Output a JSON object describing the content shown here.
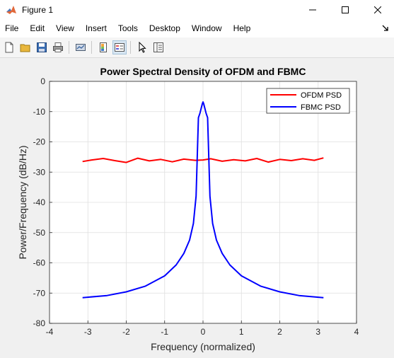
{
  "window": {
    "title": "Figure 1"
  },
  "menu": [
    "File",
    "Edit",
    "View",
    "Insert",
    "Tools",
    "Desktop",
    "Window",
    "Help"
  ],
  "toolbar": [
    {
      "icon": "new-figure-icon"
    },
    {
      "icon": "open-file-icon"
    },
    {
      "icon": "save-icon"
    },
    {
      "icon": "print-icon"
    },
    {
      "icon": "link-plot-icon"
    },
    {
      "icon": "colorbar-icon"
    },
    {
      "icon": "legend-icon"
    },
    {
      "icon": "edit-plot-pointer-icon"
    },
    {
      "icon": "property-inspector-icon"
    }
  ],
  "chart_data": {
    "type": "line",
    "title": "Power Spectral Density of OFDM and FBMC",
    "xlabel": "Frequency (normalized)",
    "ylabel": "Power/Frequency (dB/Hz)",
    "xlim": [
      -4,
      4
    ],
    "ylim": [
      -80,
      0
    ],
    "xticks": [
      "-4",
      "-3",
      "-2",
      "-1",
      "0",
      "1",
      "2",
      "3",
      "4"
    ],
    "yticks": [
      "0",
      "-10",
      "-20",
      "-30",
      "-40",
      "-50",
      "-60",
      "-70",
      "-80"
    ],
    "grid": true,
    "legend_position": "top-right",
    "series": [
      {
        "name": "OFDM PSD",
        "color": "#ff0000",
        "x": [
          -3.14,
          -2.9,
          -2.6,
          -2.3,
          -2.0,
          -1.7,
          -1.4,
          -1.1,
          -0.8,
          -0.5,
          -0.2,
          0.0,
          0.2,
          0.5,
          0.8,
          1.1,
          1.4,
          1.7,
          2.0,
          2.3,
          2.6,
          2.9,
          3.14
        ],
        "y": [
          -26.5,
          -26.0,
          -25.5,
          -26.2,
          -26.8,
          -25.4,
          -26.3,
          -25.8,
          -26.6,
          -25.7,
          -26.1,
          -26.0,
          -25.6,
          -26.4,
          -25.9,
          -26.3,
          -25.5,
          -26.7,
          -25.8,
          -26.2,
          -25.6,
          -26.1,
          -25.3
        ]
      },
      {
        "name": "FBMC PSD",
        "color": "#0000ff",
        "x": [
          -3.14,
          -2.5,
          -2.0,
          -1.5,
          -1.0,
          -0.7,
          -0.5,
          -0.35,
          -0.25,
          -0.18,
          -0.12,
          -0.08,
          -0.05,
          -0.02,
          0.0,
          0.02,
          0.05,
          0.08,
          0.12,
          0.18,
          0.25,
          0.35,
          0.5,
          0.7,
          1.0,
          1.5,
          2.0,
          2.5,
          3.14
        ],
        "y": [
          -71.5,
          -70.8,
          -69.6,
          -67.7,
          -64.3,
          -60.7,
          -56.9,
          -52.5,
          -47.0,
          -38.0,
          -12.0,
          -10.5,
          -9.0,
          -7.5,
          -6.8,
          -7.5,
          -9.0,
          -10.5,
          -12.0,
          -38.0,
          -47.0,
          -52.5,
          -56.9,
          -60.7,
          -64.3,
          -67.7,
          -69.6,
          -70.8,
          -71.5
        ]
      }
    ]
  }
}
